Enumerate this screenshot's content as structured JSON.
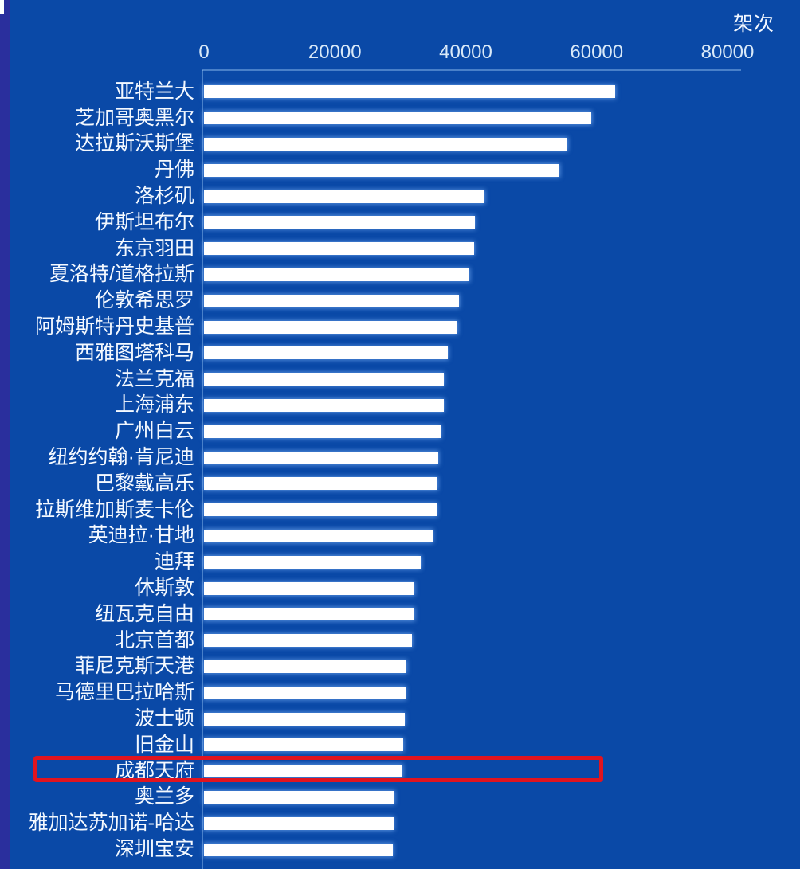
{
  "page": {
    "background_color": "#0a49a7",
    "left_strip_color": "#2a2f9d",
    "bar_color": "#ffffff",
    "text_color": "#f4f9ff",
    "highlight_box_color": "#e1141f"
  },
  "chart_data": {
    "type": "bar",
    "orientation": "horizontal",
    "unit_label": "架次",
    "categories": [
      "亚特兰大",
      "芝加哥奥黑尔",
      "达拉斯沃斯堡",
      "丹佛",
      "洛杉矶",
      "伊斯坦布尔",
      "东京羽田",
      "夏洛特/道格拉斯",
      "伦敦希思罗",
      "阿姆斯特丹史基普",
      "西雅图塔科马",
      "法兰克福",
      "上海浦东",
      "广州白云",
      "纽约约翰·肯尼迪",
      "巴黎戴高乐",
      "拉斯维加斯麦卡伦",
      "英迪拉·甘地",
      "迪拜",
      "休斯敦",
      "纽瓦克自由",
      "北京首都",
      "菲尼克斯天港",
      "马德里巴拉哈斯",
      "波士顿",
      "旧金山",
      "成都天府",
      "奥兰多",
      "雅加达苏加诺-哈达",
      "深圳宝安"
    ],
    "values": [
      62800,
      59200,
      55500,
      54300,
      42900,
      41400,
      41300,
      40500,
      38900,
      38700,
      37300,
      36700,
      36600,
      36200,
      35800,
      35700,
      35600,
      34900,
      33100,
      32200,
      32100,
      31800,
      30900,
      30800,
      30700,
      30400,
      30300,
      29100,
      29000,
      28800
    ],
    "xlabel": "",
    "ylabel": "",
    "xlim": [
      0,
      80000
    ],
    "x_ticks": [
      0,
      20000,
      40000,
      60000,
      80000
    ],
    "x_tick_labels": [
      "0",
      "20000",
      "40000",
      "60000",
      "80000"
    ],
    "grid": false,
    "legend": false,
    "highlight": {
      "category": "成都天府",
      "index": 26,
      "style": "red-outline-box"
    }
  }
}
